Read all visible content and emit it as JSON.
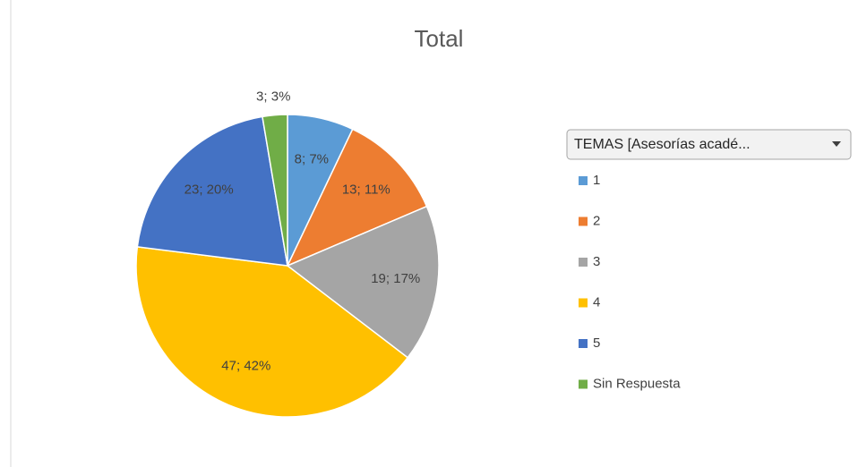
{
  "chart_data": {
    "type": "pie",
    "title": "Total",
    "legend_title": "TEMAS [Asesorías acadé...",
    "categories": [
      "1",
      "2",
      "3",
      "4",
      "5",
      "Sin Respuesta"
    ],
    "values": [
      8,
      13,
      19,
      47,
      23,
      3
    ],
    "value_labels": [
      "8; 7%",
      "13; 11%",
      "19; 17%",
      "47; 42%",
      "23; 20%",
      "3; 3%"
    ],
    "colors": [
      "#5b9bd5",
      "#ed7d31",
      "#a5a5a5",
      "#ffc000",
      "#4472c4",
      "#70ad47"
    ],
    "legend": "right"
  }
}
